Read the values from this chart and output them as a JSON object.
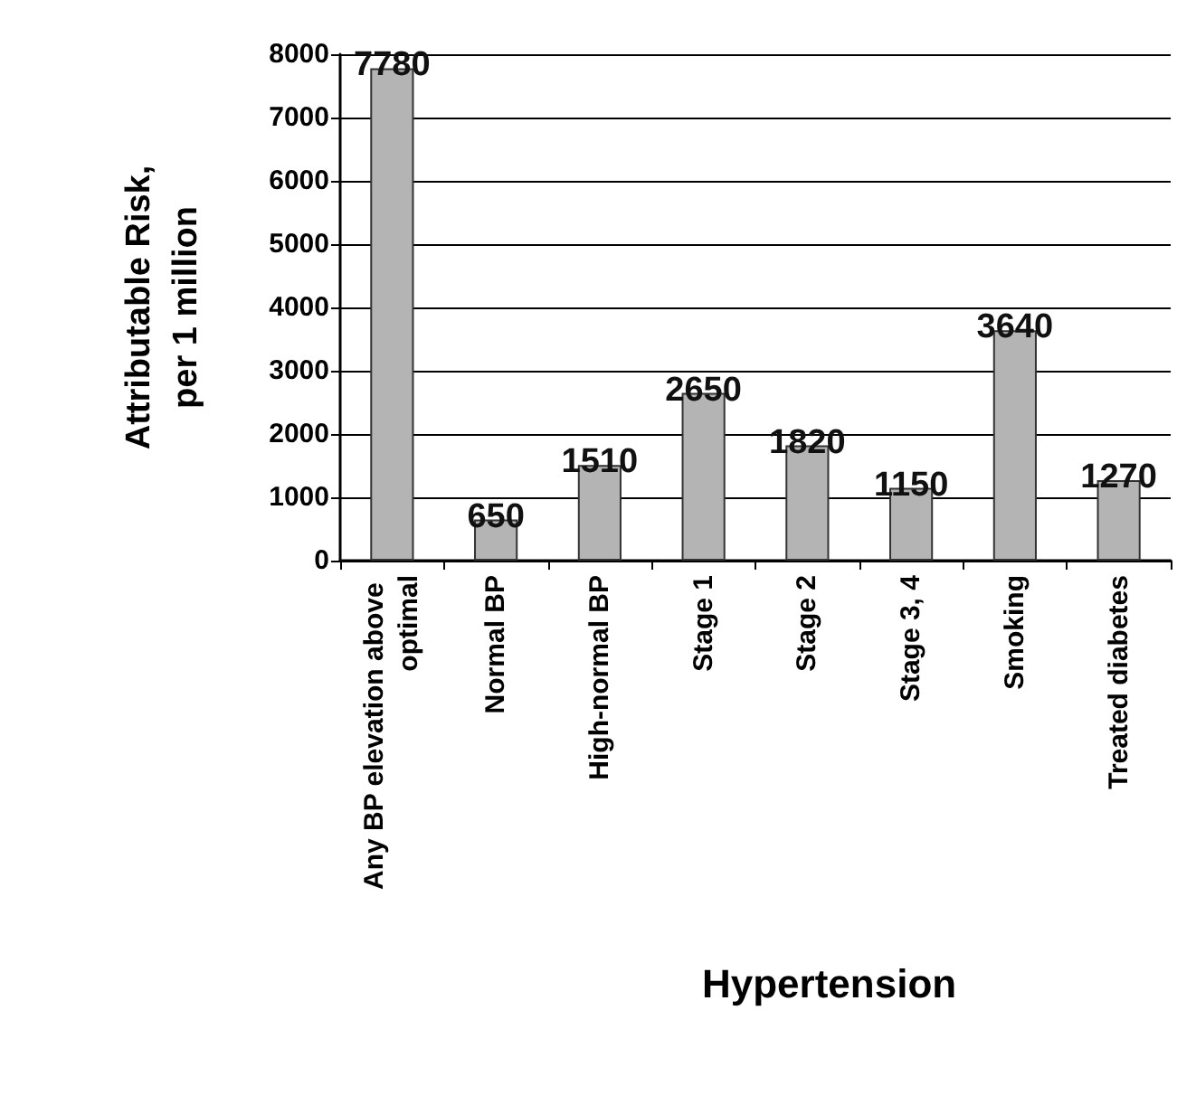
{
  "chart_data": {
    "type": "bar",
    "annotations": [
      "Hypertension"
    ],
    "ylabel": "Attributable Risk,\nper 1 million",
    "categories": [
      "Any BP elevation above optimal",
      "Normal BP",
      "High-normal BP",
      "Stage 1",
      "Stage 2",
      "Stage 3, 4",
      "Smoking",
      "Treated diabetes"
    ],
    "values": [
      7780,
      650,
      1510,
      2650,
      1820,
      1150,
      3640,
      1270
    ],
    "color": "#b4b4b4",
    "ylim": [
      0,
      8000
    ],
    "yticks": [
      0,
      1000,
      2000,
      3000,
      4000,
      5000,
      6000,
      7000,
      8000
    ],
    "grid": "y",
    "data_labels": true
  }
}
